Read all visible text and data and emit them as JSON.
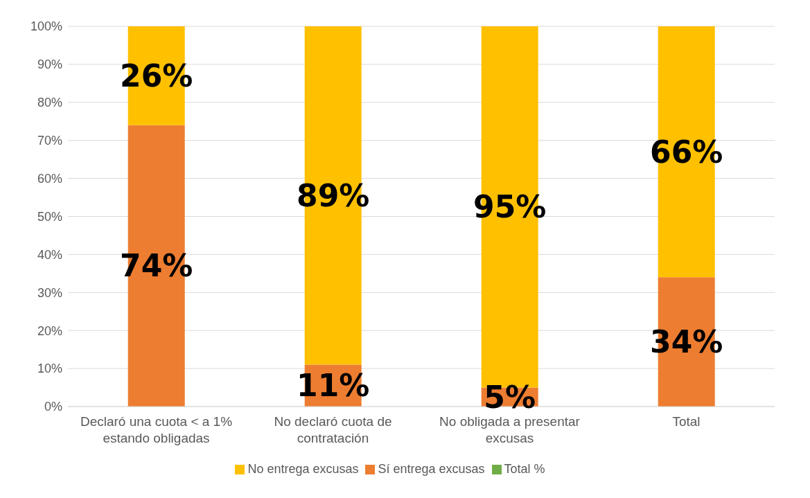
{
  "chart_data": {
    "type": "bar",
    "stacked": true,
    "categories": [
      "Declaró una cuota < a 1% estando obligadas",
      "No declaró cuota de contratación",
      "No obligada a presentar excusas",
      "Total"
    ],
    "series": [
      {
        "name": "Sí entrega excusas",
        "color": "#ed7d31",
        "values": [
          74,
          11,
          5,
          34
        ],
        "value_labels": [
          "74%",
          "11%",
          "5%",
          "34%"
        ]
      },
      {
        "name": "No entrega excusas",
        "color": "#ffc000",
        "values": [
          26,
          89,
          95,
          66
        ],
        "value_labels": [
          "26%",
          "89%",
          "95%",
          "66%"
        ]
      },
      {
        "name": "Total %",
        "color": "#70ad47",
        "values": [
          0,
          0,
          0,
          0
        ]
      }
    ],
    "ylim": [
      0,
      100
    ],
    "yticks": [
      {
        "value": 0,
        "label": "0%"
      },
      {
        "value": 10,
        "label": "10%"
      },
      {
        "value": 20,
        "label": "20%"
      },
      {
        "value": 30,
        "label": "30%"
      },
      {
        "value": 40,
        "label": "40%"
      },
      {
        "value": 50,
        "label": "50%"
      },
      {
        "value": 60,
        "label": "60%"
      },
      {
        "value": 70,
        "label": "70%"
      },
      {
        "value": 80,
        "label": "80%"
      },
      {
        "value": 90,
        "label": "90%"
      },
      {
        "value": 100,
        "label": "100%"
      }
    ],
    "grid": "y",
    "legend": "bottom"
  }
}
